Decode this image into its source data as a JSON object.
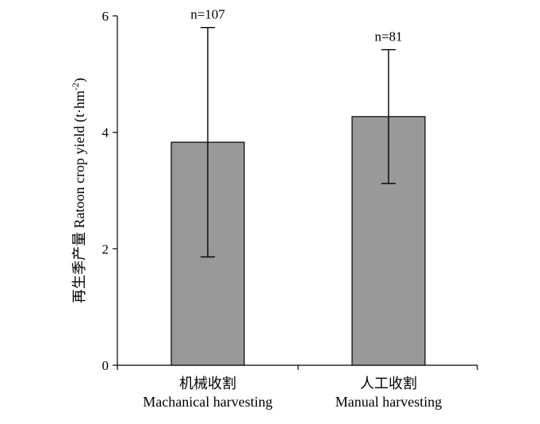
{
  "chart_data": {
    "type": "bar",
    "categories": [
      {
        "zh": "机械收割",
        "en": "Machanical harvesting"
      },
      {
        "zh": "人工收割",
        "en": "Manual harvesting"
      }
    ],
    "values": [
      3.83,
      4.27
    ],
    "error_plus": [
      1.97,
      1.15
    ],
    "error_minus": [
      1.97,
      1.15
    ],
    "annotations": [
      "n=107",
      "n=81"
    ],
    "ylabel": {
      "prefix": "再生季产量 Ratoon crop yield (t·hm",
      "sup": "-2",
      "suffix": ")"
    },
    "ylim": [
      0,
      6
    ],
    "yticks": [
      0,
      2,
      4,
      6
    ],
    "grid": false,
    "bar_color": "#999999"
  }
}
